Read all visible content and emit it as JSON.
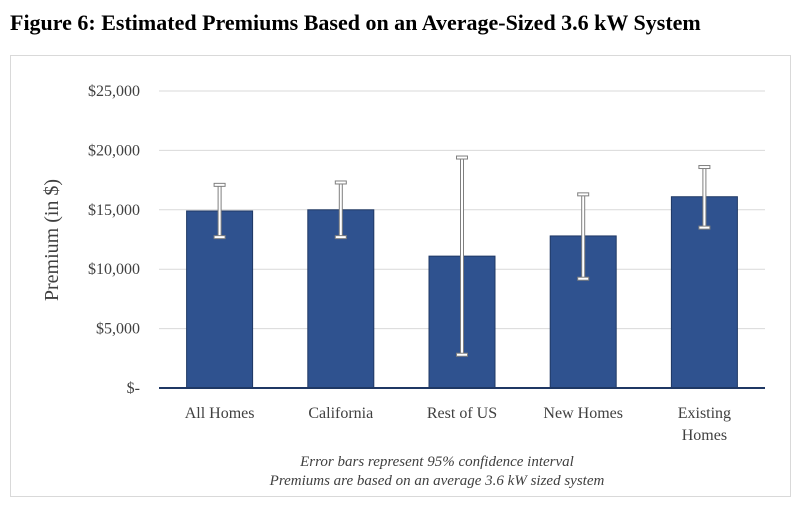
{
  "title": "Figure 6: Estimated Premiums Based on an Average-Sized 3.6 kW System",
  "chart_data": {
    "type": "bar",
    "categories": [
      [
        "All Homes"
      ],
      [
        "California"
      ],
      [
        "Rest of US"
      ],
      [
        "New Homes"
      ],
      [
        "Existing",
        "Homes"
      ]
    ],
    "values": [
      14900,
      15000,
      11100,
      12800,
      16100
    ],
    "error_low": [
      12700,
      12700,
      2800,
      9200,
      13500
    ],
    "error_high": [
      17100,
      17300,
      19400,
      16300,
      18600
    ],
    "ylabel": "Premium (in $)",
    "ylim": [
      0,
      25000
    ],
    "yticks": [
      0,
      5000,
      10000,
      15000,
      20000,
      25000
    ],
    "ytick_labels": [
      "$-",
      "$5,000",
      "$10,000",
      "$15,000",
      "$20,000",
      "$25,000"
    ],
    "grid": true,
    "bar_color": "#2f528f",
    "notes": [
      "Error bars represent 95% confidence interval",
      "Premiums are based on an average 3.6 kW sized system"
    ]
  }
}
